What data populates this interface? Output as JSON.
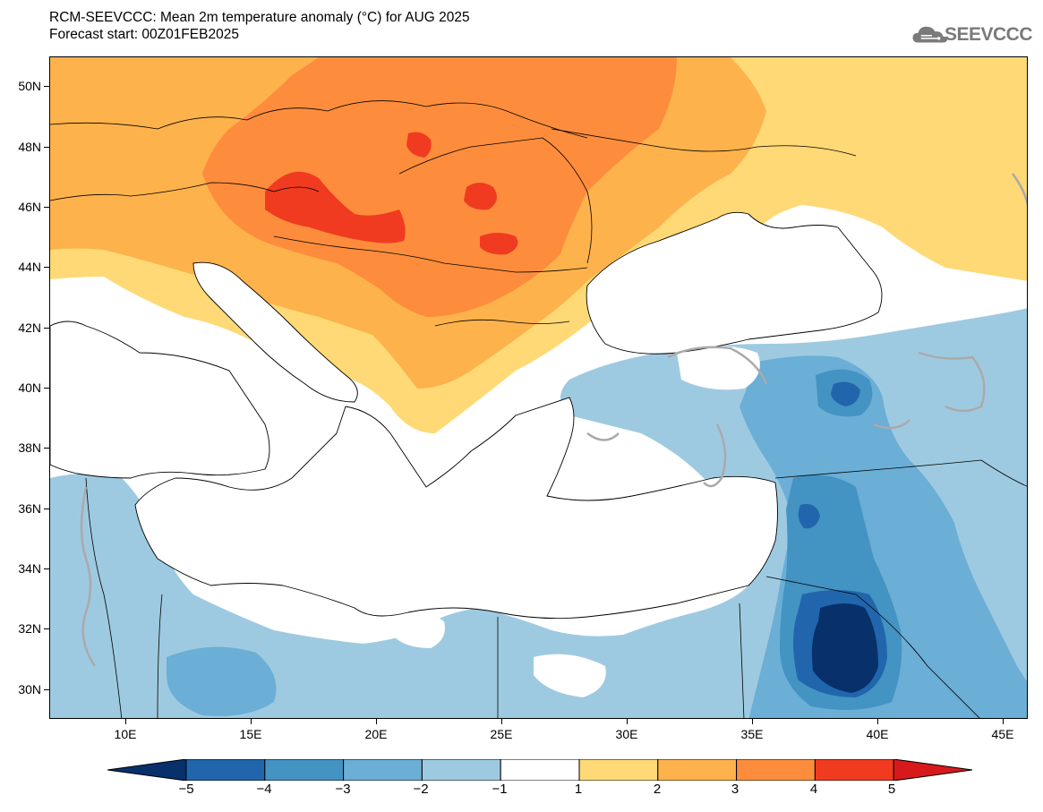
{
  "title": {
    "line1": "RCM-SEEVCCC: Mean 2m temperature anomaly (°C) for AUG 2025",
    "line2": "Forecast start: 00Z01FEB2025"
  },
  "logo": {
    "text": "SEEVCCC"
  },
  "axes": {
    "lat_labels": [
      "50N",
      "48N",
      "46N",
      "44N",
      "42N",
      "40N",
      "38N",
      "36N",
      "34N",
      "32N",
      "30N"
    ],
    "lon_labels": [
      "10E",
      "15E",
      "20E",
      "25E",
      "30E",
      "35E",
      "40E",
      "45E"
    ]
  },
  "colorbar": {
    "labels": [
      "−5",
      "−4",
      "−3",
      "−2",
      "−1",
      "1",
      "2",
      "3",
      "4",
      "5"
    ],
    "colors": [
      "#08306b",
      "#2166ac",
      "#4393c3",
      "#6baed6",
      "#9ecae1",
      "#ffffff",
      "#fed976",
      "#feb24c",
      "#fd8d3c",
      "#f03b20",
      "#d7191c"
    ]
  },
  "map": {
    "extent": {
      "lon_min": 7,
      "lon_max": 46,
      "lat_min": 29,
      "lat_max": 51
    },
    "colors": {
      "neg5": "#08306b",
      "neg4": "#2166ac",
      "neg3": "#4393c3",
      "neg2": "#6baed6",
      "neg1": "#9ecae1",
      "zero": "#ffffff",
      "pos1": "#fed976",
      "pos2": "#feb24c",
      "pos3": "#fd8d3c",
      "pos4": "#f03b20",
      "contour": "#aaaaaa",
      "coast": "#000000"
    }
  }
}
